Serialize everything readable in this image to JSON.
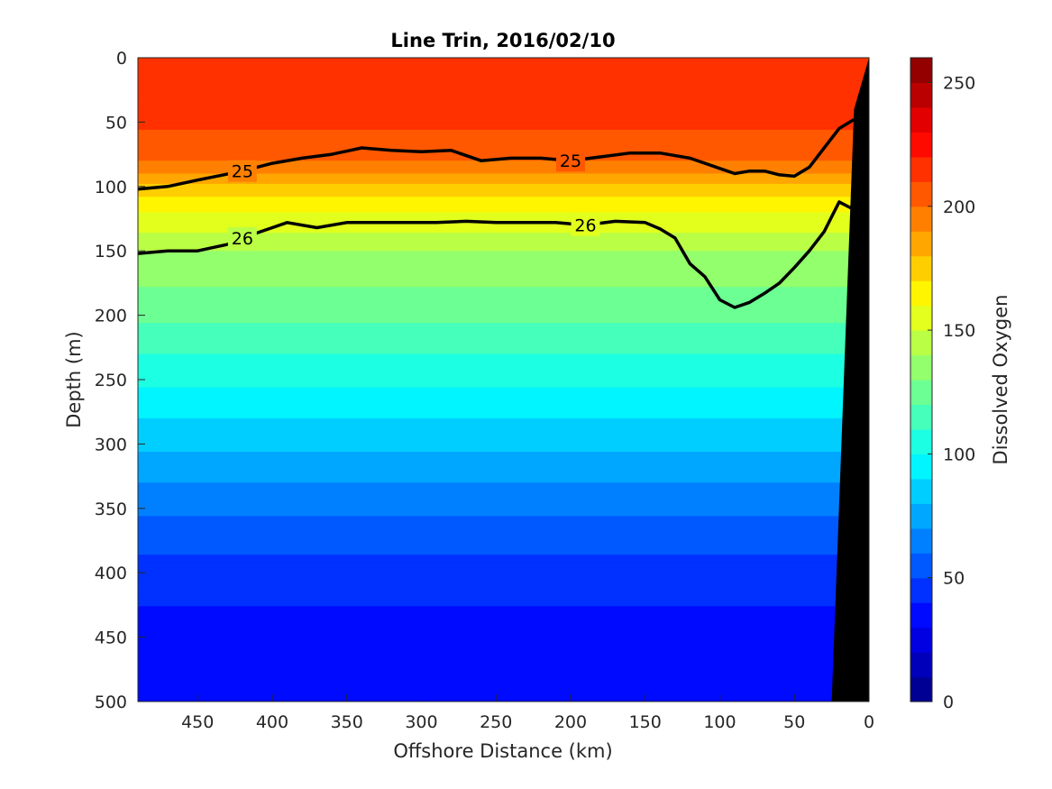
{
  "chart_data": {
    "type": "heatmap",
    "subtype": "filled-contour section",
    "title": "Line Trin, 2016/02/10",
    "xlabel": "Offshore Distance (km)",
    "ylabel": "Depth (m)",
    "xlim": [
      490,
      0
    ],
    "ylim": [
      0,
      500
    ],
    "x_reversed": true,
    "y_reversed": true,
    "xticks": [
      450,
      400,
      350,
      300,
      250,
      200,
      150,
      100,
      50,
      0
    ],
    "yticks": [
      0,
      50,
      100,
      150,
      200,
      250,
      300,
      350,
      400,
      450,
      500
    ],
    "colorbar": {
      "label": "Dissolved Oxygen",
      "limits": [
        0,
        260
      ],
      "ticks": [
        0,
        50,
        100,
        150,
        200,
        250
      ],
      "level_step": 10,
      "colormap": "jet"
    },
    "oxygen_depth_profile": {
      "depth_m": [
        0,
        50,
        80,
        100,
        120,
        150,
        200,
        250,
        300,
        350,
        400,
        450,
        500
      ],
      "dissolved_oxygen": [
        220,
        212,
        200,
        178,
        160,
        140,
        122,
        102,
        82,
        62,
        45,
        35,
        30
      ]
    },
    "density_contours": [
      {
        "label": "25",
        "x_km": [
          490,
          470,
          450,
          420,
          400,
          380,
          360,
          340,
          320,
          300,
          280,
          260,
          240,
          220,
          200,
          180,
          160,
          140,
          120,
          100,
          90,
          80,
          70,
          60,
          50,
          40,
          30,
          20,
          10
        ],
        "depth_m": [
          102,
          100,
          95,
          88,
          82,
          78,
          75,
          70,
          72,
          73,
          72,
          80,
          78,
          78,
          80,
          77,
          74,
          74,
          78,
          86,
          90,
          88,
          88,
          91,
          92,
          85,
          70,
          55,
          48
        ]
      },
      {
        "label": "26",
        "x_km": [
          490,
          470,
          450,
          430,
          420,
          400,
          390,
          370,
          350,
          330,
          310,
          290,
          270,
          250,
          230,
          210,
          190,
          170,
          150,
          140,
          130,
          120,
          110,
          100,
          90,
          80,
          70,
          60,
          50,
          40,
          30,
          20,
          10
        ],
        "depth_m": [
          152,
          150,
          150,
          145,
          140,
          132,
          128,
          132,
          128,
          128,
          128,
          128,
          127,
          128,
          128,
          128,
          130,
          127,
          128,
          133,
          140,
          160,
          170,
          188,
          194,
          190,
          183,
          175,
          163,
          150,
          135,
          112,
          118
        ]
      }
    ],
    "seafloor_mask": {
      "color": "#000000",
      "edge_x_km": [
        0,
        10,
        25,
        0
      ],
      "edge_depth_m": [
        0,
        40,
        500,
        500
      ]
    }
  }
}
